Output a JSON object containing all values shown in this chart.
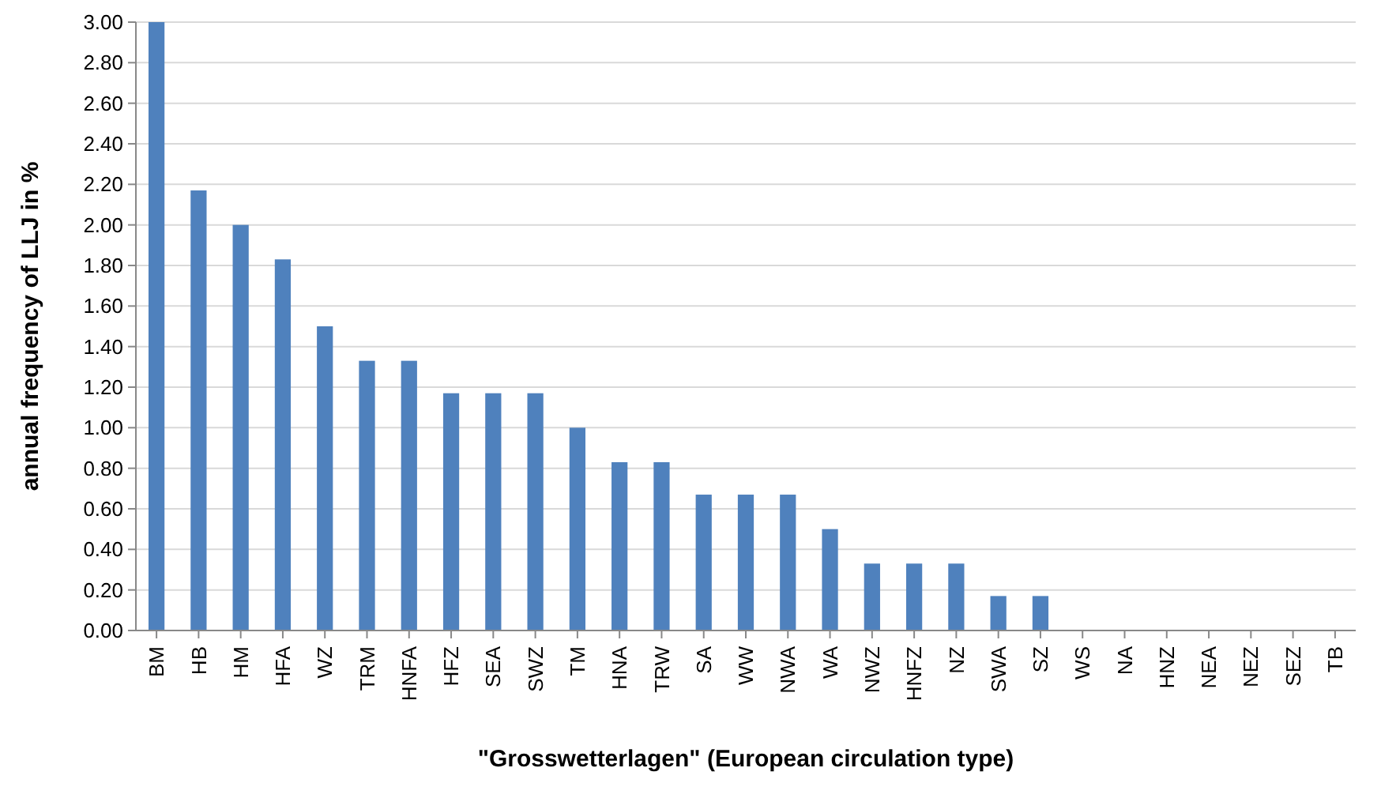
{
  "chart_data": {
    "type": "bar",
    "xlabel": "\"Grosswetterlagen\" (European circulation type)",
    "ylabel": "annual frequency of LLJ in %",
    "categories": [
      "BM",
      "HB",
      "HM",
      "HFA",
      "WZ",
      "TRM",
      "HNFA",
      "HFZ",
      "SEA",
      "SWZ",
      "TM",
      "HNA",
      "TRW",
      "SA",
      "WW",
      "NWA",
      "WA",
      "NWZ",
      "HNFZ",
      "NZ",
      "SWA",
      "SZ",
      "WS",
      "NA",
      "HNZ",
      "NEA",
      "NEZ",
      "SEZ",
      "TB"
    ],
    "values": [
      3.0,
      2.17,
      2.0,
      1.83,
      1.5,
      1.33,
      1.33,
      1.17,
      1.17,
      1.17,
      1.0,
      0.83,
      0.83,
      0.67,
      0.67,
      0.67,
      0.5,
      0.33,
      0.33,
      0.33,
      0.17,
      0.17,
      0,
      0,
      0,
      0,
      0,
      0,
      0
    ],
    "color": "#4f81bd",
    "ylim": [
      0,
      3
    ],
    "yticks": [
      {
        "value": 0,
        "label": "0.00"
      },
      {
        "value": 0.2,
        "label": "0.20"
      },
      {
        "value": 0.4,
        "label": "0.40"
      },
      {
        "value": 0.6,
        "label": "0.60"
      },
      {
        "value": 0.8,
        "label": "0.80"
      },
      {
        "value": 1,
        "label": "1.00"
      },
      {
        "value": 1.2,
        "label": "1.20"
      },
      {
        "value": 1.4,
        "label": "1.40"
      },
      {
        "value": 1.6,
        "label": "1.60"
      },
      {
        "value": 1.8,
        "label": "1.80"
      },
      {
        "value": 2,
        "label": "2.00"
      },
      {
        "value": 2.2,
        "label": "2.20"
      },
      {
        "value": 2.4,
        "label": "2.40"
      },
      {
        "value": 2.6,
        "label": "2.60"
      },
      {
        "value": 2.8,
        "label": "2.80"
      },
      {
        "value": 3,
        "label": "3.00"
      }
    ],
    "grid": "y"
  }
}
